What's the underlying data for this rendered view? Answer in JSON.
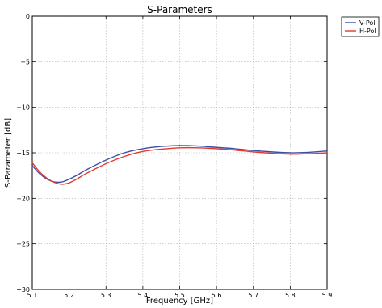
{
  "chart_data": {
    "type": "line",
    "title": "S-Parameters",
    "xlabel": "Frequency [GHz]",
    "ylabel": "S-Parameter [dB]",
    "xlim": [
      5.1,
      5.9
    ],
    "ylim": [
      -30,
      0
    ],
    "xticks": [
      5.1,
      5.2,
      5.3,
      5.4,
      5.5,
      5.6,
      5.7,
      5.8,
      5.9
    ],
    "yticks": [
      -30,
      -25,
      -20,
      -15,
      -10,
      -5,
      0
    ],
    "xtick_labels": [
      "5.1",
      "5.2",
      "5.3",
      "5.4",
      "5.5",
      "5.6",
      "5.7",
      "5.8",
      "5.9"
    ],
    "ytick_labels": [
      "−30",
      "−25",
      "−20",
      "−15",
      "−10",
      "−5",
      "0"
    ],
    "grid": true,
    "legend_position": "outside-top-right",
    "series": [
      {
        "name": "V-Pol",
        "color": "#3b4fa8",
        "x": [
          5.1,
          5.12,
          5.14,
          5.16,
          5.18,
          5.2,
          5.22,
          5.25,
          5.3,
          5.35,
          5.4,
          5.45,
          5.5,
          5.55,
          5.6,
          5.65,
          5.7,
          5.75,
          5.8,
          5.85,
          5.9
        ],
        "y": [
          -16.4,
          -17.3,
          -17.9,
          -18.2,
          -18.2,
          -17.9,
          -17.5,
          -16.8,
          -15.8,
          -15.0,
          -14.55,
          -14.3,
          -14.2,
          -14.25,
          -14.4,
          -14.55,
          -14.75,
          -14.9,
          -15.0,
          -14.95,
          -14.8
        ]
      },
      {
        "name": "H-Pol",
        "color": "#e23a32",
        "x": [
          5.1,
          5.12,
          5.14,
          5.16,
          5.18,
          5.2,
          5.22,
          5.25,
          5.3,
          5.35,
          5.4,
          5.45,
          5.5,
          5.55,
          5.6,
          5.65,
          5.7,
          5.75,
          5.8,
          5.85,
          5.9
        ],
        "y": [
          -16.1,
          -17.1,
          -17.8,
          -18.25,
          -18.45,
          -18.3,
          -17.9,
          -17.2,
          -16.2,
          -15.4,
          -14.85,
          -14.6,
          -14.45,
          -14.45,
          -14.55,
          -14.7,
          -14.9,
          -15.05,
          -15.15,
          -15.1,
          -15.0
        ]
      }
    ]
  }
}
